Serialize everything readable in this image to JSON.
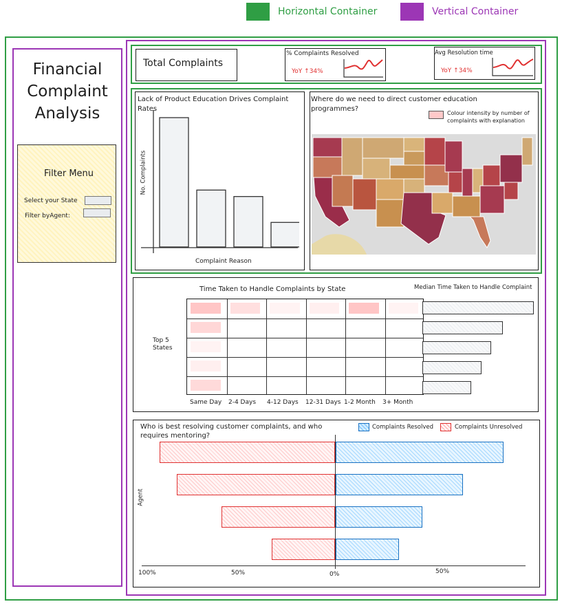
{
  "legend": {
    "horizontal": {
      "label": "Horizontal Container",
      "color": "#2f9e44"
    },
    "vertical": {
      "label": "Vertical Container",
      "color": "#9c36b5"
    }
  },
  "title": "Financial Complaint Analysis",
  "title_lines": [
    "Financial",
    "Complaint",
    "Analysis"
  ],
  "filter": {
    "title": "Filter Menu",
    "state_label": "Select your State",
    "agent_label": "Filter byAgent:"
  },
  "kpis": {
    "total": "Total Complaints",
    "resolved": {
      "label": "% Complaints Resolved",
      "yoy": "YoY ↑34%"
    },
    "avg_time": {
      "label": "Avg Resolution time",
      "yoy": "YoY ↑34%"
    }
  },
  "chart_data": [
    {
      "type": "bar",
      "title": "Lack of Product Education Drives Complaint Rates",
      "xlabel": "Complaint Reason",
      "ylabel": "No. Complaints",
      "values": [
        100,
        44,
        39,
        19
      ]
    },
    {
      "type": "map",
      "title": "Where do we need to direct customer education programmes?",
      "legend": "Colour intensity by number of complaints with explanation",
      "legend_color": "#ffc9c9"
    },
    {
      "type": "heatmap",
      "title": "Time Taken to Handle Complaints by State",
      "ylabel": "Top 5 States",
      "columns": [
        "Same Day",
        "2-4 Days",
        "4-12 Days",
        "12-31 Days",
        "1-2 Month",
        "3+ Month"
      ],
      "header_intensity": [
        0.7,
        0.4,
        0.15,
        0.2,
        0.7,
        0.15
      ],
      "first_column_intensity": [
        0.5,
        0.15,
        0.2,
        0.45
      ]
    },
    {
      "type": "bar",
      "orientation": "horizontal",
      "title": "Median Time Taken to Handle Complaint",
      "values": [
        100,
        72,
        62,
        53,
        44
      ]
    },
    {
      "type": "bar",
      "orientation": "diverging",
      "title": "Who is best resolving customer complaints, and who requires mentoring?",
      "ylabel": "Agent",
      "ticks": [
        "100%",
        "50%",
        "0%",
        "50%"
      ],
      "series": [
        {
          "name": "Complaints Resolved",
          "color": "#a5d8ff",
          "values": [
            87,
            66,
            45,
            33
          ]
        },
        {
          "name": "Complaints Unresolved",
          "color": "#ffc9c9",
          "values": [
            91,
            82,
            59,
            33
          ]
        }
      ]
    }
  ]
}
